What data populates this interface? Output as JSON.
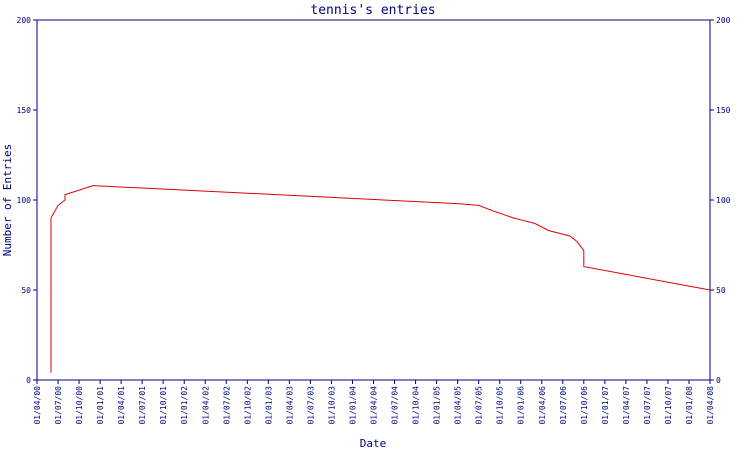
{
  "chart_data": {
    "type": "line",
    "title": "tennis's entries",
    "xlabel": "Date",
    "ylabel": "Number of Entries",
    "ylim": [
      0,
      200
    ],
    "y_ticks": [
      0,
      50,
      100,
      150,
      200
    ],
    "y_tick_labels": [
      "0",
      "50",
      "100",
      "150",
      "200"
    ],
    "x_tick_labels": [
      "01/04/00",
      "01/07/00",
      "01/10/00",
      "01/01/01",
      "01/04/01",
      "01/07/01",
      "01/10/01",
      "01/01/02",
      "01/04/02",
      "01/07/02",
      "01/10/02",
      "01/01/03",
      "01/04/03",
      "01/07/03",
      "01/10/03",
      "01/01/04",
      "01/04/04",
      "01/07/04",
      "01/10/04",
      "01/01/05",
      "01/04/05",
      "01/07/05",
      "01/10/05",
      "01/01/06",
      "01/04/06",
      "01/07/06",
      "01/10/06",
      "01/01/07",
      "01/04/07",
      "01/07/07",
      "01/10/07",
      "01/01/08",
      "01/04/08"
    ],
    "xlim": [
      "01/04/00",
      "01/04/08"
    ],
    "grid": false,
    "legend": "none",
    "right_axis": true,
    "series": [
      {
        "color": "#e00000",
        "x": [
          "01/06/00",
          "01/06/00",
          "01/06/00",
          "01/06/00",
          "01/07/00",
          "01/08/00",
          "01/08/00",
          "01/12/00",
          "01/04/05",
          "01/07/05",
          "01/09/05",
          "01/12/05",
          "01/01/06",
          "01/03/06",
          "01/05/06",
          "01/06/06",
          "01/08/06",
          "01/09/06",
          "01/10/06",
          "01/10/06",
          "01/10/06",
          "01/04/08"
        ],
        "y": [
          4,
          30,
          60,
          90,
          97,
          100,
          103,
          108,
          98,
          97,
          94,
          90,
          89,
          87,
          83,
          82,
          80,
          77,
          72,
          68,
          63,
          50
        ]
      }
    ],
    "colors": {
      "axis": "#000080",
      "series": "#e00000",
      "background": "#ffffff"
    }
  }
}
